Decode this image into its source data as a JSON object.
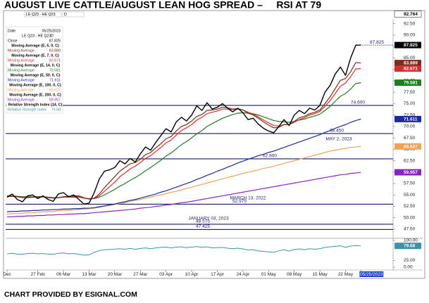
{
  "chart_data": {
    "type": "line",
    "title": "AUGUST LIVE CATTLE/AUGUST LEAN HOG SPREAD –     RSI AT 79",
    "footer": "CHART PROVIDED BY ESIGNAL.COM",
    "symbol": "LE Q23 - HE Q23",
    "interval": "D",
    "legend_date_label": "Date",
    "cursor_value": 92.764,
    "categories": [
      "Dec",
      null,
      null,
      null,
      null,
      null,
      "27 Feb",
      null,
      null,
      null,
      null,
      "06 Mar",
      null,
      null,
      null,
      null,
      "13 Mar",
      null,
      null,
      null,
      null,
      "20 Mar",
      null,
      null,
      null,
      null,
      "27 Mar",
      null,
      null,
      null,
      null,
      "03 Apr",
      null,
      null,
      null,
      null,
      "10 Apr",
      null,
      null,
      null,
      null,
      "17 Apr",
      null,
      null,
      null,
      null,
      "24 Apr",
      null,
      null,
      null,
      null,
      "01 May",
      null,
      null,
      null,
      null,
      "08 May",
      null,
      null,
      null,
      null,
      "15 May",
      null,
      null,
      null,
      null,
      "22 May",
      null,
      null,
      "05/25/2023"
    ],
    "ylim": [
      45.8,
      94
    ],
    "yticks": [
      {
        "value": 47.5,
        "label": "47.50"
      },
      {
        "value": 50,
        "label": "50.00"
      },
      {
        "value": 52.5,
        "label": "52.50"
      },
      {
        "value": 55,
        "label": "55.00"
      },
      {
        "value": 57.5,
        "label": "57.50"
      },
      {
        "value": 60,
        "label": "60.00"
      },
      {
        "value": 62.5,
        "label": "62.50"
      },
      {
        "value": 65,
        "label": "65.00"
      },
      {
        "value": 67.5,
        "label": "67.50"
      },
      {
        "value": 70,
        "label": "70.00"
      },
      {
        "value": 72.5,
        "label": "72.50"
      },
      {
        "value": 75,
        "label": "75.00"
      },
      {
        "value": 77.5,
        "label": "77.50"
      },
      {
        "value": 80,
        "label": "80.00"
      },
      {
        "value": 82.5,
        "label": "82.50"
      },
      {
        "value": 85,
        "label": "85.00"
      },
      {
        "value": 87.5,
        "label": "87.50"
      },
      {
        "value": 90,
        "label": "90.00"
      },
      {
        "value": 92.5,
        "label": "92.50"
      }
    ],
    "grid": false,
    "series": [
      {
        "name": "Close",
        "color": "#000000",
        "values": [
          54.5,
          55.2,
          54.0,
          53.5,
          54.8,
          55.0,
          54.2,
          54.8,
          54.0,
          53.6,
          55.2,
          55.5,
          54.6,
          55.0,
          54.0,
          53.0,
          53.2,
          55.5,
          58.5,
          60.2,
          60.5,
          61.0,
          62.5,
          61.8,
          63.0,
          62.2,
          64.0,
          65.5,
          64.8,
          66.5,
          68.0,
          69.5,
          68.8,
          71.0,
          72.0,
          71.2,
          72.5,
          74.5,
          73.5,
          75.2,
          73.8,
          74.2,
          75.0,
          74.0,
          73.2,
          74.0,
          73.0,
          71.5,
          71.8,
          70.5,
          69.6,
          69.0,
          68.6,
          70.0,
          71.5,
          70.2,
          72.5,
          73.5,
          72.8,
          74.0,
          73.6,
          74.6,
          77.5,
          79.0,
          81.5,
          83.0,
          81.2,
          85.0,
          87.8,
          87.825
        ]
      },
      {
        "name": "Moving Average (E, 5, 0, C)",
        "row_label": "Moving Average",
        "color": "#7a2c18",
        "values": [
          54.6,
          54.7,
          54.6,
          54.4,
          54.4,
          54.5,
          54.6,
          54.6,
          54.4,
          54.3,
          54.4,
          54.6,
          54.7,
          54.8,
          54.8,
          54.4,
          54.1,
          54.3,
          55.2,
          56.6,
          57.8,
          59.0,
          60.2,
          61.0,
          61.8,
          62.1,
          62.8,
          63.8,
          64.3,
          65.3,
          66.2,
          67.3,
          67.8,
          69.0,
          70.0,
          70.4,
          71.2,
          72.2,
          72.6,
          73.5,
          73.6,
          73.8,
          74.2,
          74.1,
          73.8,
          73.9,
          73.6,
          72.9,
          72.5,
          71.8,
          71.0,
          70.3,
          69.7,
          69.8,
          70.4,
          70.4,
          71.1,
          71.9,
          72.2,
          72.8,
          73.1,
          73.6,
          75.0,
          76.5,
          78.3,
          80.1,
          80.5,
          82.0,
          84.0,
          83.889
        ]
      },
      {
        "name": "Moving Average (E, 7, 0, C)",
        "row_label": "Moving Average",
        "color": "#d32f2f",
        "values": [
          54.7,
          54.7,
          54.6,
          54.5,
          54.5,
          54.5,
          54.5,
          54.6,
          54.5,
          54.3,
          54.4,
          54.5,
          54.6,
          54.7,
          54.6,
          54.3,
          54.1,
          54.2,
          54.8,
          55.8,
          56.8,
          57.8,
          59.0,
          59.8,
          60.7,
          61.3,
          62.1,
          63.0,
          63.6,
          64.5,
          65.4,
          66.4,
          67.0,
          68.1,
          69.1,
          69.7,
          70.4,
          71.4,
          72.0,
          72.8,
          73.1,
          73.4,
          73.8,
          73.8,
          73.7,
          73.8,
          73.6,
          73.1,
          72.7,
          72.1,
          71.4,
          70.8,
          70.2,
          70.1,
          70.4,
          70.4,
          70.9,
          71.5,
          71.9,
          72.5,
          72.8,
          73.3,
          74.4,
          75.7,
          77.2,
          78.8,
          79.5,
          80.9,
          82.6,
          82.671
        ]
      },
      {
        "name": "Moving Average (E, 14, 0, C)",
        "row_label": "Moving Average",
        "color": "#1e7d22",
        "values": [
          54.8,
          54.8,
          54.7,
          54.6,
          54.6,
          54.6,
          54.6,
          54.6,
          54.5,
          54.4,
          54.4,
          54.5,
          54.5,
          54.5,
          54.5,
          54.3,
          54.2,
          54.2,
          54.5,
          55.0,
          55.6,
          56.2,
          56.9,
          57.5,
          58.2,
          58.8,
          59.5,
          60.3,
          61.0,
          61.8,
          62.6,
          63.5,
          64.2,
          65.1,
          66.0,
          66.7,
          67.5,
          68.4,
          69.1,
          70.0,
          70.6,
          71.2,
          71.8,
          72.2,
          72.6,
          72.9,
          73.0,
          72.9,
          72.8,
          72.5,
          72.1,
          71.7,
          71.3,
          71.1,
          71.0,
          70.9,
          71.1,
          71.4,
          71.6,
          72.0,
          72.3,
          72.7,
          73.5,
          74.4,
          75.5,
          76.6,
          77.2,
          78.2,
          79.4,
          79.581
        ]
      },
      {
        "name": "Moving Average (E, 50, 0, C)",
        "row_label": "Moving Average",
        "color": "#1b2a9e",
        "values": [
          51.3,
          51.4,
          51.4,
          51.5,
          51.5,
          51.6,
          51.6,
          51.7,
          51.7,
          51.8,
          51.8,
          51.9,
          51.9,
          52.0,
          52.0,
          52.1,
          52.1,
          52.2,
          52.4,
          52.6,
          52.8,
          53.0,
          53.3,
          53.5,
          53.8,
          54.0,
          54.3,
          54.6,
          54.9,
          55.2,
          55.6,
          55.9,
          56.3,
          56.7,
          57.1,
          57.5,
          57.9,
          58.4,
          58.8,
          59.3,
          59.7,
          60.2,
          60.6,
          61.1,
          61.5,
          62.0,
          62.4,
          62.8,
          63.2,
          63.6,
          63.9,
          64.3,
          64.6,
          65.0,
          65.4,
          65.8,
          66.2,
          66.6,
          67.0,
          67.4,
          67.8,
          68.2,
          68.7,
          69.1,
          69.6,
          70.0,
          70.4,
          70.9,
          71.3,
          71.611
        ]
      },
      {
        "name": "Moving Average (E, 100, 0, C)",
        "row_label": "Moving Average",
        "color": "#f0a257",
        "values": [
          50.8,
          50.9,
          50.9,
          51.0,
          51.1,
          51.1,
          51.2,
          51.3,
          51.3,
          51.4,
          51.5,
          51.6,
          51.6,
          51.7,
          51.8,
          51.9,
          52.0,
          52.1,
          52.3,
          52.5,
          52.7,
          52.9,
          53.1,
          53.3,
          53.6,
          53.8,
          54.0,
          54.3,
          54.5,
          54.8,
          55.0,
          55.3,
          55.6,
          55.8,
          56.1,
          56.4,
          56.7,
          57.0,
          57.3,
          57.6,
          57.9,
          58.2,
          58.5,
          58.8,
          59.1,
          59.4,
          59.7,
          60.0,
          60.2,
          60.5,
          60.8,
          61.0,
          61.3,
          61.6,
          61.9,
          62.2,
          62.5,
          62.8,
          63.1,
          63.4,
          63.7,
          64.0,
          64.3,
          64.6,
          64.8,
          65.0,
          65.2,
          65.4,
          65.5,
          65.627
        ]
      },
      {
        "name": "Moving Average (E, 200, 0, C)",
        "row_label": "Moving Average",
        "color": "#8b22c4",
        "values": [
          50.2,
          50.2,
          50.3,
          50.3,
          50.4,
          50.4,
          50.5,
          50.5,
          50.6,
          50.6,
          50.7,
          50.7,
          50.8,
          50.8,
          50.9,
          50.9,
          51.0,
          51.1,
          51.2,
          51.3,
          51.4,
          51.5,
          51.6,
          51.7,
          51.8,
          51.9,
          52.1,
          52.2,
          52.3,
          52.5,
          52.6,
          52.8,
          52.9,
          53.1,
          53.3,
          53.4,
          53.6,
          53.8,
          54.0,
          54.2,
          54.4,
          54.6,
          54.8,
          55.0,
          55.2,
          55.4,
          55.6,
          55.8,
          56.0,
          56.2,
          56.4,
          56.6,
          56.8,
          57.0,
          57.2,
          57.4,
          57.6,
          57.8,
          58.0,
          58.2,
          58.4,
          58.6,
          58.8,
          59.0,
          59.2,
          59.4,
          59.5,
          59.7,
          59.8,
          59.957
        ]
      }
    ],
    "hlines": [
      {
        "value": 87.825,
        "label": "87.825"
      },
      {
        "value": 74.6,
        "label": "74.600"
      },
      {
        "value": 68.45,
        "label": "68.450"
      },
      {
        "value": 62.9,
        "label": "62.900"
      },
      {
        "value": 52.975,
        "label": "52.975"
      },
      {
        "value": 48.575,
        "label": "48.575"
      },
      {
        "value": 47.425,
        "label": "47.425"
      }
    ],
    "annotations": [
      "MAY 2, 2023",
      "MARCH 13, 2022",
      "JANUARY 03, 2023"
    ],
    "rsi": {
      "name": "Relative Strength Index (14, C)",
      "row_label": "Relative Strength Index",
      "color": "#3a93a6",
      "ylim": [
        0,
        100
      ],
      "yticks": [
        {
          "value": 100,
          "label": "100.00"
        },
        {
          "value": 25,
          "label": "25.00"
        },
        {
          "value": 0,
          "label": "0.00"
        }
      ],
      "values": [
        50,
        52,
        49,
        48,
        51,
        52,
        50,
        51,
        49,
        48,
        52,
        53,
        50,
        51,
        48,
        45,
        46,
        55,
        62,
        65,
        66,
        67,
        69,
        67,
        70,
        67,
        70,
        72,
        69,
        72,
        74,
        75,
        72,
        75,
        76,
        73,
        75,
        77,
        74,
        76,
        72,
        73,
        74,
        71,
        69,
        71,
        68,
        64,
        65,
        61,
        59,
        57,
        56,
        61,
        65,
        60,
        66,
        68,
        65,
        69,
        67,
        69,
        74,
        76,
        78,
        80,
        74,
        79,
        81,
        79.68
      ]
    }
  }
}
